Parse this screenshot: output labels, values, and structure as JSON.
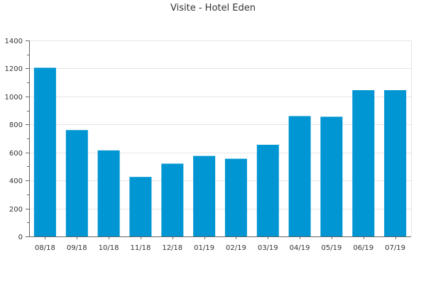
{
  "chart_data": {
    "type": "bar",
    "title": "Visite - Hotel Eden",
    "xlabel": "",
    "ylabel": "",
    "categories": [
      "08/18",
      "09/18",
      "10/18",
      "11/18",
      "12/18",
      "01/19",
      "02/19",
      "03/19",
      "04/19",
      "05/19",
      "06/19",
      "07/19"
    ],
    "values": [
      1205,
      760,
      615,
      425,
      520,
      575,
      555,
      655,
      860,
      855,
      1045,
      1045
    ],
    "ylim": [
      0,
      1400
    ],
    "yticks": [
      0,
      200,
      400,
      600,
      800,
      1000,
      1200,
      1400
    ],
    "grid": true,
    "colors": {
      "bar": "#0095d3",
      "grid": "#e6e6e6",
      "axis": "#666666"
    }
  }
}
